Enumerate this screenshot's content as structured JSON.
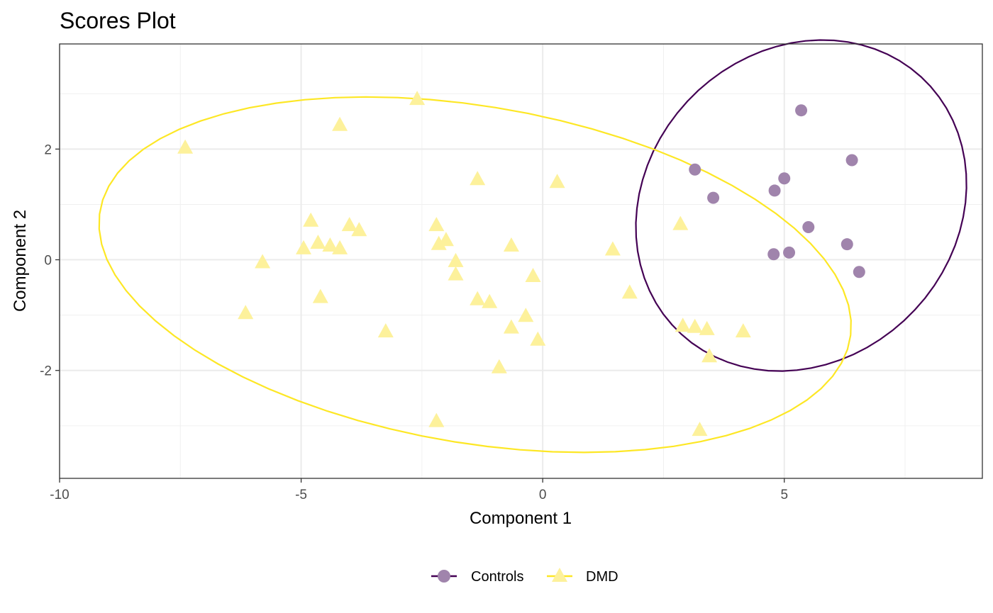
{
  "chart_data": {
    "type": "scatter",
    "title": "Scores Plot",
    "xlabel": "Component 1",
    "ylabel": "Component 2",
    "xlim": [
      -10,
      9.1
    ],
    "ylim": [
      -3.95,
      3.9
    ],
    "x_ticks": [
      -10,
      -5,
      0,
      5
    ],
    "x_tick_labels": [
      "-10",
      "-5",
      "0",
      "5"
    ],
    "y_ticks": [
      -2,
      0,
      2
    ],
    "y_tick_labels": [
      "-2",
      "0",
      "2"
    ],
    "grid": true,
    "legend_position": "bottom",
    "series": [
      {
        "name": "Controls",
        "marker": "circle",
        "color": "#440154",
        "point_color": "#a084ac",
        "points": [
          [
            5.35,
            2.7
          ],
          [
            6.4,
            1.8
          ],
          [
            3.15,
            1.63
          ],
          [
            5.0,
            1.47
          ],
          [
            4.8,
            1.25
          ],
          [
            3.53,
            1.12
          ],
          [
            5.5,
            0.59
          ],
          [
            6.3,
            0.28
          ],
          [
            5.1,
            0.13
          ],
          [
            4.78,
            0.1
          ],
          [
            6.55,
            -0.22
          ]
        ],
        "ellipse": {
          "center": [
            5.35,
            0.98
          ],
          "semi_major": 3.5,
          "semi_minor": 2.9,
          "angle_deg": 22
        }
      },
      {
        "name": "DMD",
        "marker": "triangle",
        "color": "#fde725",
        "point_color": "#fdf19b",
        "points": [
          [
            -2.6,
            2.9
          ],
          [
            -4.2,
            2.43
          ],
          [
            -7.4,
            2.02
          ],
          [
            -1.35,
            1.45
          ],
          [
            0.3,
            1.4
          ],
          [
            -4.8,
            0.7
          ],
          [
            -4.0,
            0.62
          ],
          [
            -3.8,
            0.53
          ],
          [
            -2.2,
            0.62
          ],
          [
            -2.0,
            0.35
          ],
          [
            -4.65,
            0.3
          ],
          [
            -2.15,
            0.28
          ],
          [
            -4.4,
            0.25
          ],
          [
            -0.65,
            0.25
          ],
          [
            -4.95,
            0.2
          ],
          [
            -4.2,
            0.2
          ],
          [
            1.45,
            0.18
          ],
          [
            2.85,
            0.64
          ],
          [
            -5.8,
            -0.05
          ],
          [
            -1.8,
            -0.03
          ],
          [
            -1.8,
            -0.27
          ],
          [
            -0.2,
            -0.3
          ],
          [
            1.8,
            -0.6
          ],
          [
            -4.6,
            -0.68
          ],
          [
            -1.35,
            -0.72
          ],
          [
            -1.1,
            -0.77
          ],
          [
            -6.15,
            -0.97
          ],
          [
            -0.35,
            -1.02
          ],
          [
            2.9,
            -1.2
          ],
          [
            3.15,
            -1.22
          ],
          [
            -0.65,
            -1.23
          ],
          [
            3.4,
            -1.26
          ],
          [
            -3.25,
            -1.3
          ],
          [
            4.15,
            -1.3
          ],
          [
            -0.1,
            -1.45
          ],
          [
            3.45,
            -1.75
          ],
          [
            -0.9,
            -1.95
          ],
          [
            -2.2,
            -2.92
          ],
          [
            3.25,
            -3.08
          ]
        ],
        "ellipse": {
          "center": [
            -1.4,
            -0.27
          ],
          "semi_major": 7.85,
          "semi_minor": 3.05,
          "angle_deg": -8
        }
      }
    ]
  }
}
